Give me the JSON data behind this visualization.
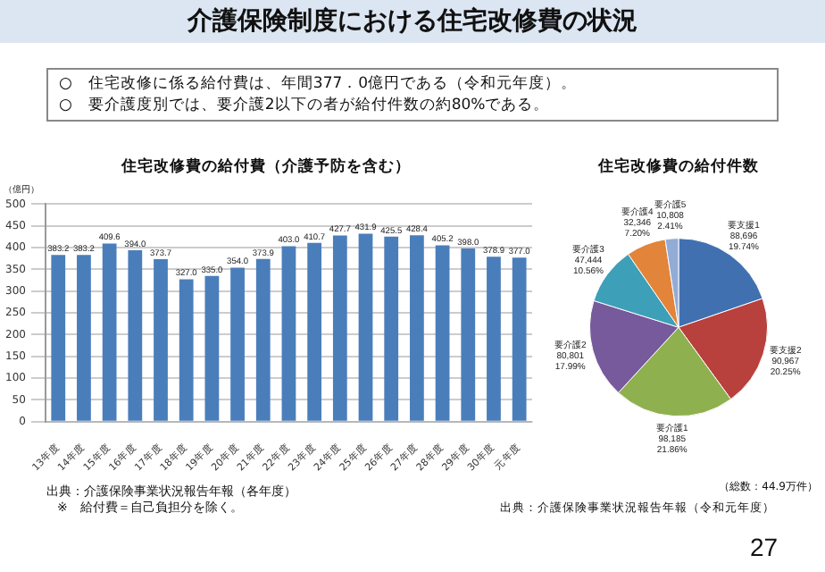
{
  "chart_data": [
    {
      "type": "other",
      "title": "介護保険制度における住宅改修費の状況",
      "annotations": [
        "○　住宅改修に係る給付費は、年間377．0億円である（令和元年度）。",
        "○　要介護度別では、要介護2以下の者が給付件数の約80%である。",
        "27"
      ]
    },
    {
      "type": "bar",
      "title": "住宅改修費の給付費（介護予防を含む）",
      "ylabel": "（億円）",
      "categories": [
        "13年度",
        "14年度",
        "15年度",
        "16年度",
        "17年度",
        "18年度",
        "19年度",
        "20年度",
        "21年度",
        "22年度",
        "23年度",
        "24年度",
        "25年度",
        "26年度",
        "27年度",
        "28年度",
        "29年度",
        "30年度",
        "元年度"
      ],
      "values": [
        383.2,
        383.2,
        409.6,
        394.0,
        373.7,
        327.0,
        335.0,
        354.0,
        373.9,
        403.0,
        410.7,
        427.7,
        431.9,
        425.5,
        428.4,
        405.2,
        398.0,
        378.9,
        377.0
      ],
      "color": "#4a7ebb",
      "ylim": [
        0,
        500
      ],
      "yticks": [
        0,
        50,
        100,
        150,
        200,
        250,
        300,
        350,
        400,
        450,
        500
      ],
      "grid": "y",
      "data_labels": true,
      "value_labels": [
        "383.2",
        "383.2",
        "409.6",
        "394.0",
        "373.7",
        "327.0",
        "335.0",
        "354.0",
        "373.9",
        "403.0",
        "410.7",
        "427.7",
        "431.9",
        "425.5",
        "428.4",
        "405.2",
        "398.0",
        "378.9",
        "377.0"
      ],
      "annotations": [
        "出典：介護保険事業状況報告年報（各年度）",
        "※　給付費＝自己負担分を除く。"
      ]
    },
    {
      "type": "pie",
      "title": "住宅改修費の給付件数",
      "categories": [
        "要支援1",
        "要支援2",
        "要介護1",
        "要介護2",
        "要介護3",
        "要介護4",
        "要介護5"
      ],
      "values": [
        88696,
        90967,
        98185,
        80801,
        47444,
        32346,
        10808
      ],
      "colors": [
        "#4170b0",
        "#b8403d",
        "#8fb04f",
        "#765a9b",
        "#3e9fb8",
        "#e2843a",
        "#93acd6"
      ],
      "value_labels": [
        "88,696\n19.74%",
        "90,967\n20.25%",
        "98,185\n21.86%",
        "80,801\n17.99%",
        "47,444\n10.56%",
        "32,346\n7.20%",
        "10,808\n2.41%"
      ],
      "annotations": [
        "（総数：44.9万件）",
        "出典：介護保険事業状況報告年報（令和元年度）"
      ]
    }
  ]
}
